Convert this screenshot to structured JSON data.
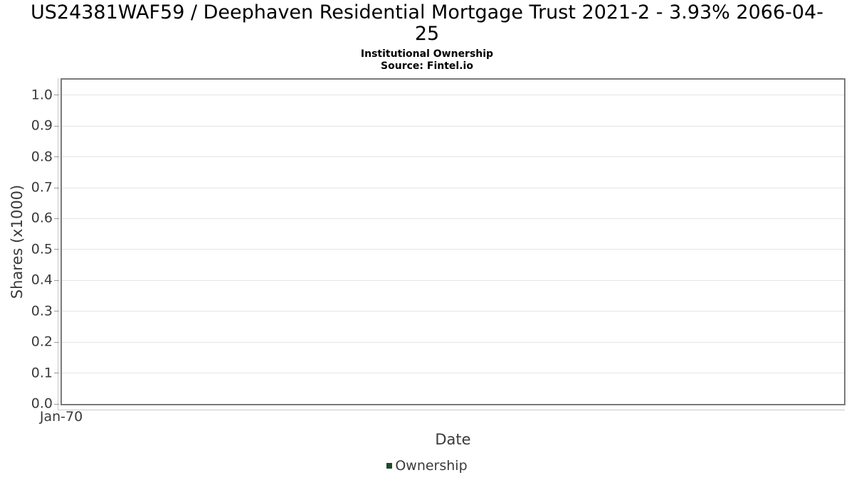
{
  "header": {
    "title_lines": [
      "US24381WAF59 / Deephaven Residential Mortgage Trust 2021-2 - 3.93% 2066-04-",
      "25"
    ],
    "subtitle": "Institutional Ownership",
    "source": "Source: Fintel.io"
  },
  "chart_data": {
    "type": "line",
    "title": "US24381WAF59 / Deephaven Residential Mortgage Trust 2021-2 - 3.93% 2066-04-25",
    "subtitle": "Institutional Ownership",
    "source": "Source: Fintel.io",
    "xlabel": "Date",
    "ylabel": "Shares (x1000)",
    "x_tick_labels": [
      "Jan-70"
    ],
    "y_tick_labels": [
      "0.0",
      "0.1",
      "0.2",
      "0.3",
      "0.4",
      "0.5",
      "0.6",
      "0.7",
      "0.8",
      "0.9",
      "1.0"
    ],
    "ylim": [
      0.0,
      1.05
    ],
    "grid": "horizontal-only",
    "legend": {
      "position": "bottom-center",
      "entries": [
        {
          "label": "Ownership",
          "color": "#1f4b2b",
          "marker": "square"
        }
      ]
    },
    "series": [
      {
        "name": "Ownership",
        "points": []
      }
    ],
    "colors": {
      "series": "#1f4b2b",
      "grid": "#e5e5e5",
      "frame": "#7a7a7a",
      "axis_text": "#3a3a3a",
      "title_text": "#000000"
    }
  }
}
